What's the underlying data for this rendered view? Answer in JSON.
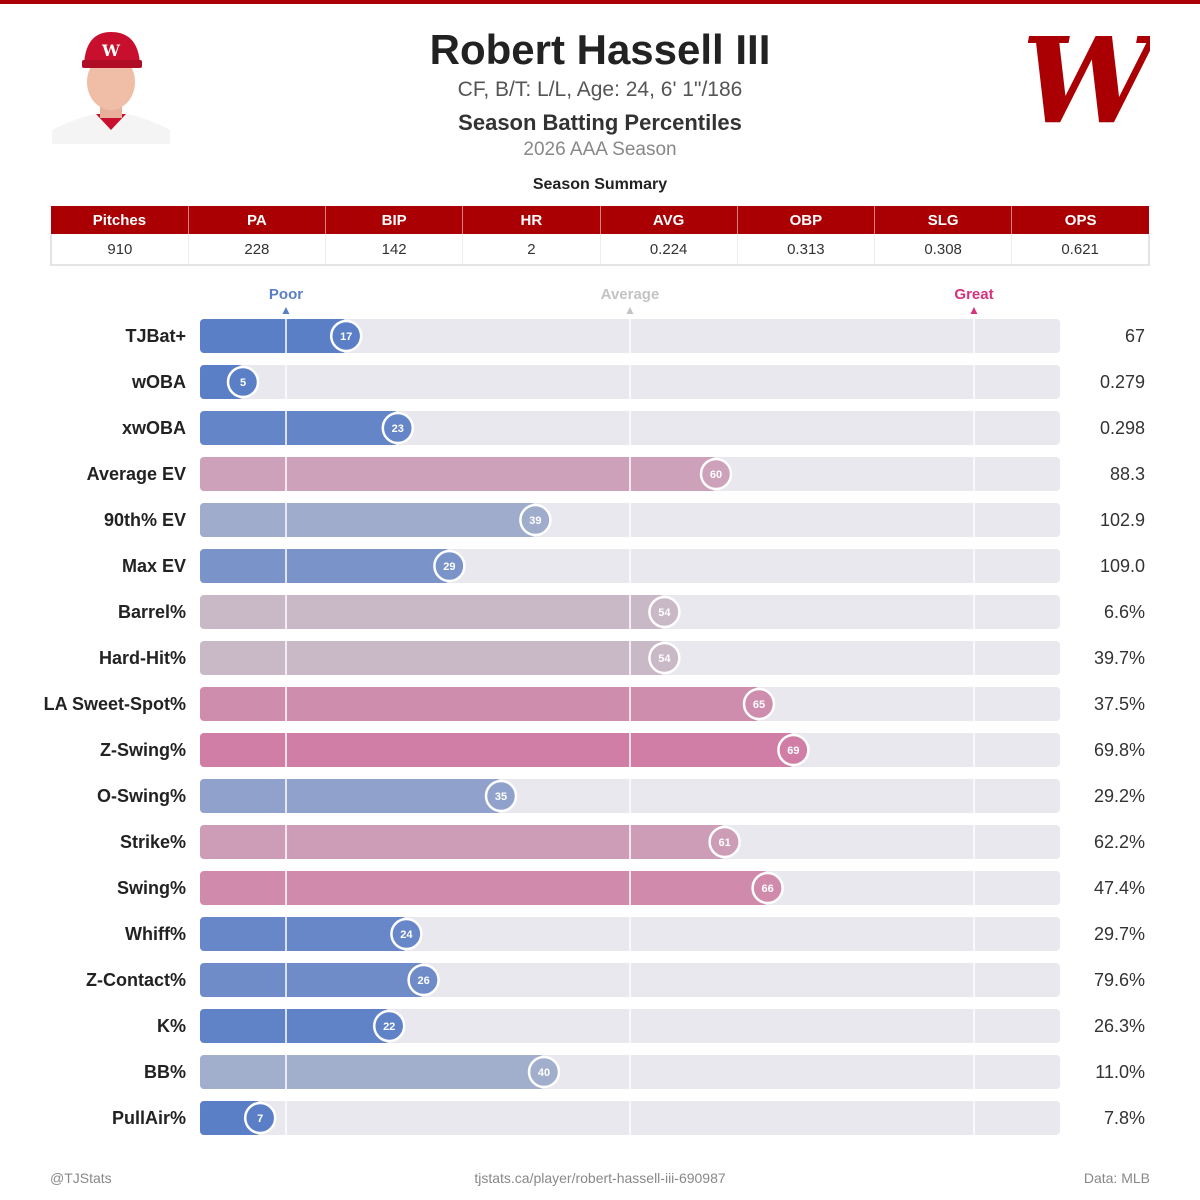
{
  "header": {
    "player_name": "Robert Hassell III",
    "bio": "CF, B/T: L/L, Age: 24, 6' 1\"/186",
    "subtitle": "Season Batting Percentiles",
    "season": "2026 AAA Season",
    "summary_title": "Season Summary"
  },
  "summary": {
    "columns": [
      "Pitches",
      "PA",
      "BIP",
      "HR",
      "AVG",
      "OBP",
      "SLG",
      "OPS"
    ],
    "values": [
      "910",
      "228",
      "142",
      "2",
      "0.224",
      "0.313",
      "0.308",
      "0.621"
    ]
  },
  "scale_markers": {
    "poor": "Poor",
    "average": "Average",
    "great": "Great"
  },
  "colors": {
    "accent_red": "#ab0003",
    "poor_blue": "#5b7fc7",
    "great_pink": "#d6568f",
    "average_gray": "#c7c7cf",
    "track": "#e8e8ee"
  },
  "chart_data": {
    "type": "bar",
    "orientation": "horizontal",
    "xlim": [
      0,
      100
    ],
    "reference_lines": [
      10,
      50,
      90
    ],
    "categories": [
      "TJBat+",
      "wOBA",
      "xwOBA",
      "Average EV",
      "90th% EV",
      "Max EV",
      "Barrel%",
      "Hard-Hit%",
      "LA Sweet-Spot%",
      "Z-Swing%",
      "O-Swing%",
      "Strike%",
      "Swing%",
      "Whiff%",
      "Z-Contact%",
      "K%",
      "BB%",
      "PullAir%"
    ],
    "percentiles": [
      17,
      5,
      23,
      60,
      39,
      29,
      54,
      54,
      65,
      69,
      35,
      61,
      66,
      24,
      26,
      22,
      40,
      7
    ],
    "stat_values": [
      "67",
      "0.279",
      "0.298",
      "88.3",
      "102.9",
      "109.0",
      "6.6%",
      "39.7%",
      "37.5%",
      "69.8%",
      "29.2%",
      "62.2%",
      "47.4%",
      "29.7%",
      "79.6%",
      "26.3%",
      "11.0%",
      "7.8%"
    ]
  },
  "footer": {
    "left": "@TJStats",
    "center": "tjstats.ca/player/robert-hassell-iii-690987",
    "right": "Data: MLB"
  }
}
